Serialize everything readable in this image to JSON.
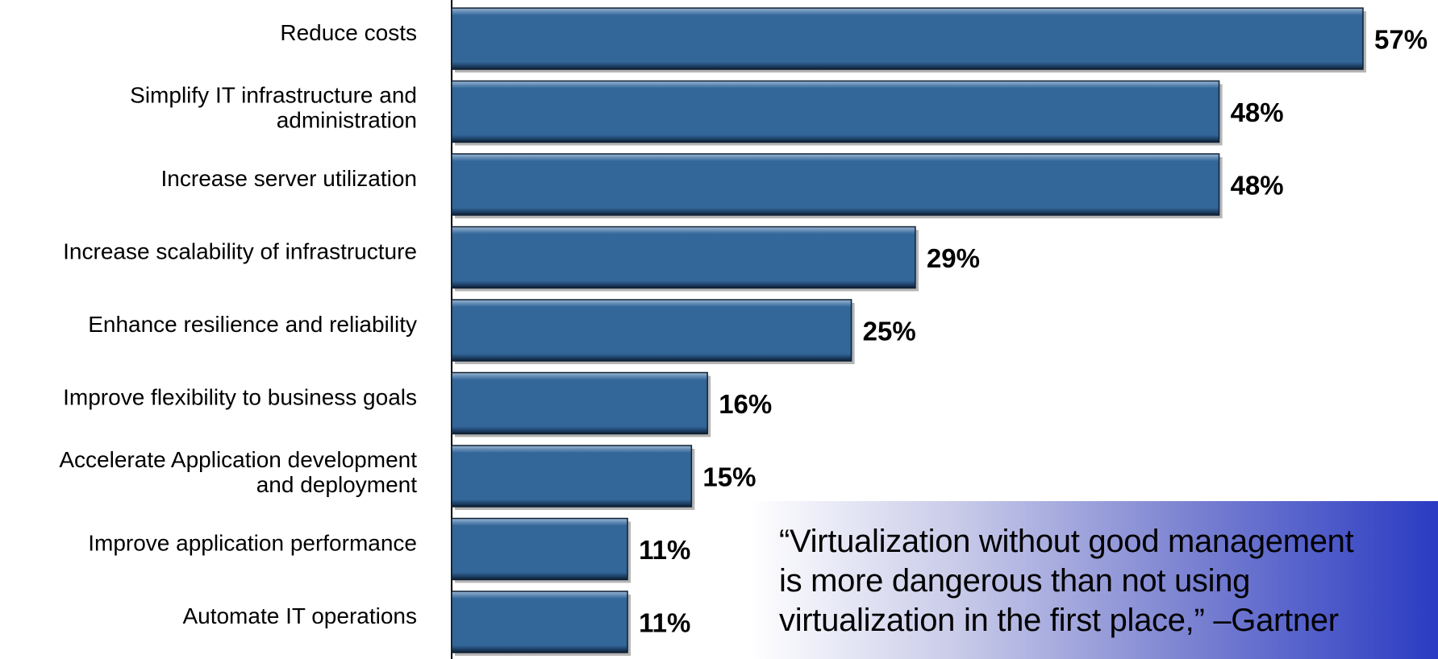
{
  "chart_data": {
    "type": "bar",
    "orientation": "horizontal",
    "categories": [
      "Reduce costs",
      "Simplify IT infrastructure and\nadministration",
      "Increase server utilization",
      "Increase scalability of infrastructure",
      "Enhance resilience and reliability",
      "Improve flexibility to business goals",
      "Accelerate Application development\nand deployment",
      "Improve application performance",
      "Automate IT operations"
    ],
    "values": [
      57,
      48,
      48,
      29,
      25,
      16,
      15,
      11,
      11
    ],
    "value_labels": [
      "57%",
      "48%",
      "48%",
      "29%",
      "25%",
      "16%",
      "15%",
      "11%",
      "11%"
    ],
    "title": "",
    "xlabel": "",
    "ylabel": "",
    "xlim": [
      0,
      57
    ],
    "grid": false,
    "legend": "none"
  },
  "colors": {
    "bar": "#336699",
    "bar_edge": "#0f1f33",
    "bar_highlight": "#7ea3c6",
    "quote_gradient_end": "#2a3bc3"
  },
  "quote": {
    "text": "“Virtualization without good management\nis more dangerous than not using\nvirtualization in the first place,” –Gartner"
  }
}
